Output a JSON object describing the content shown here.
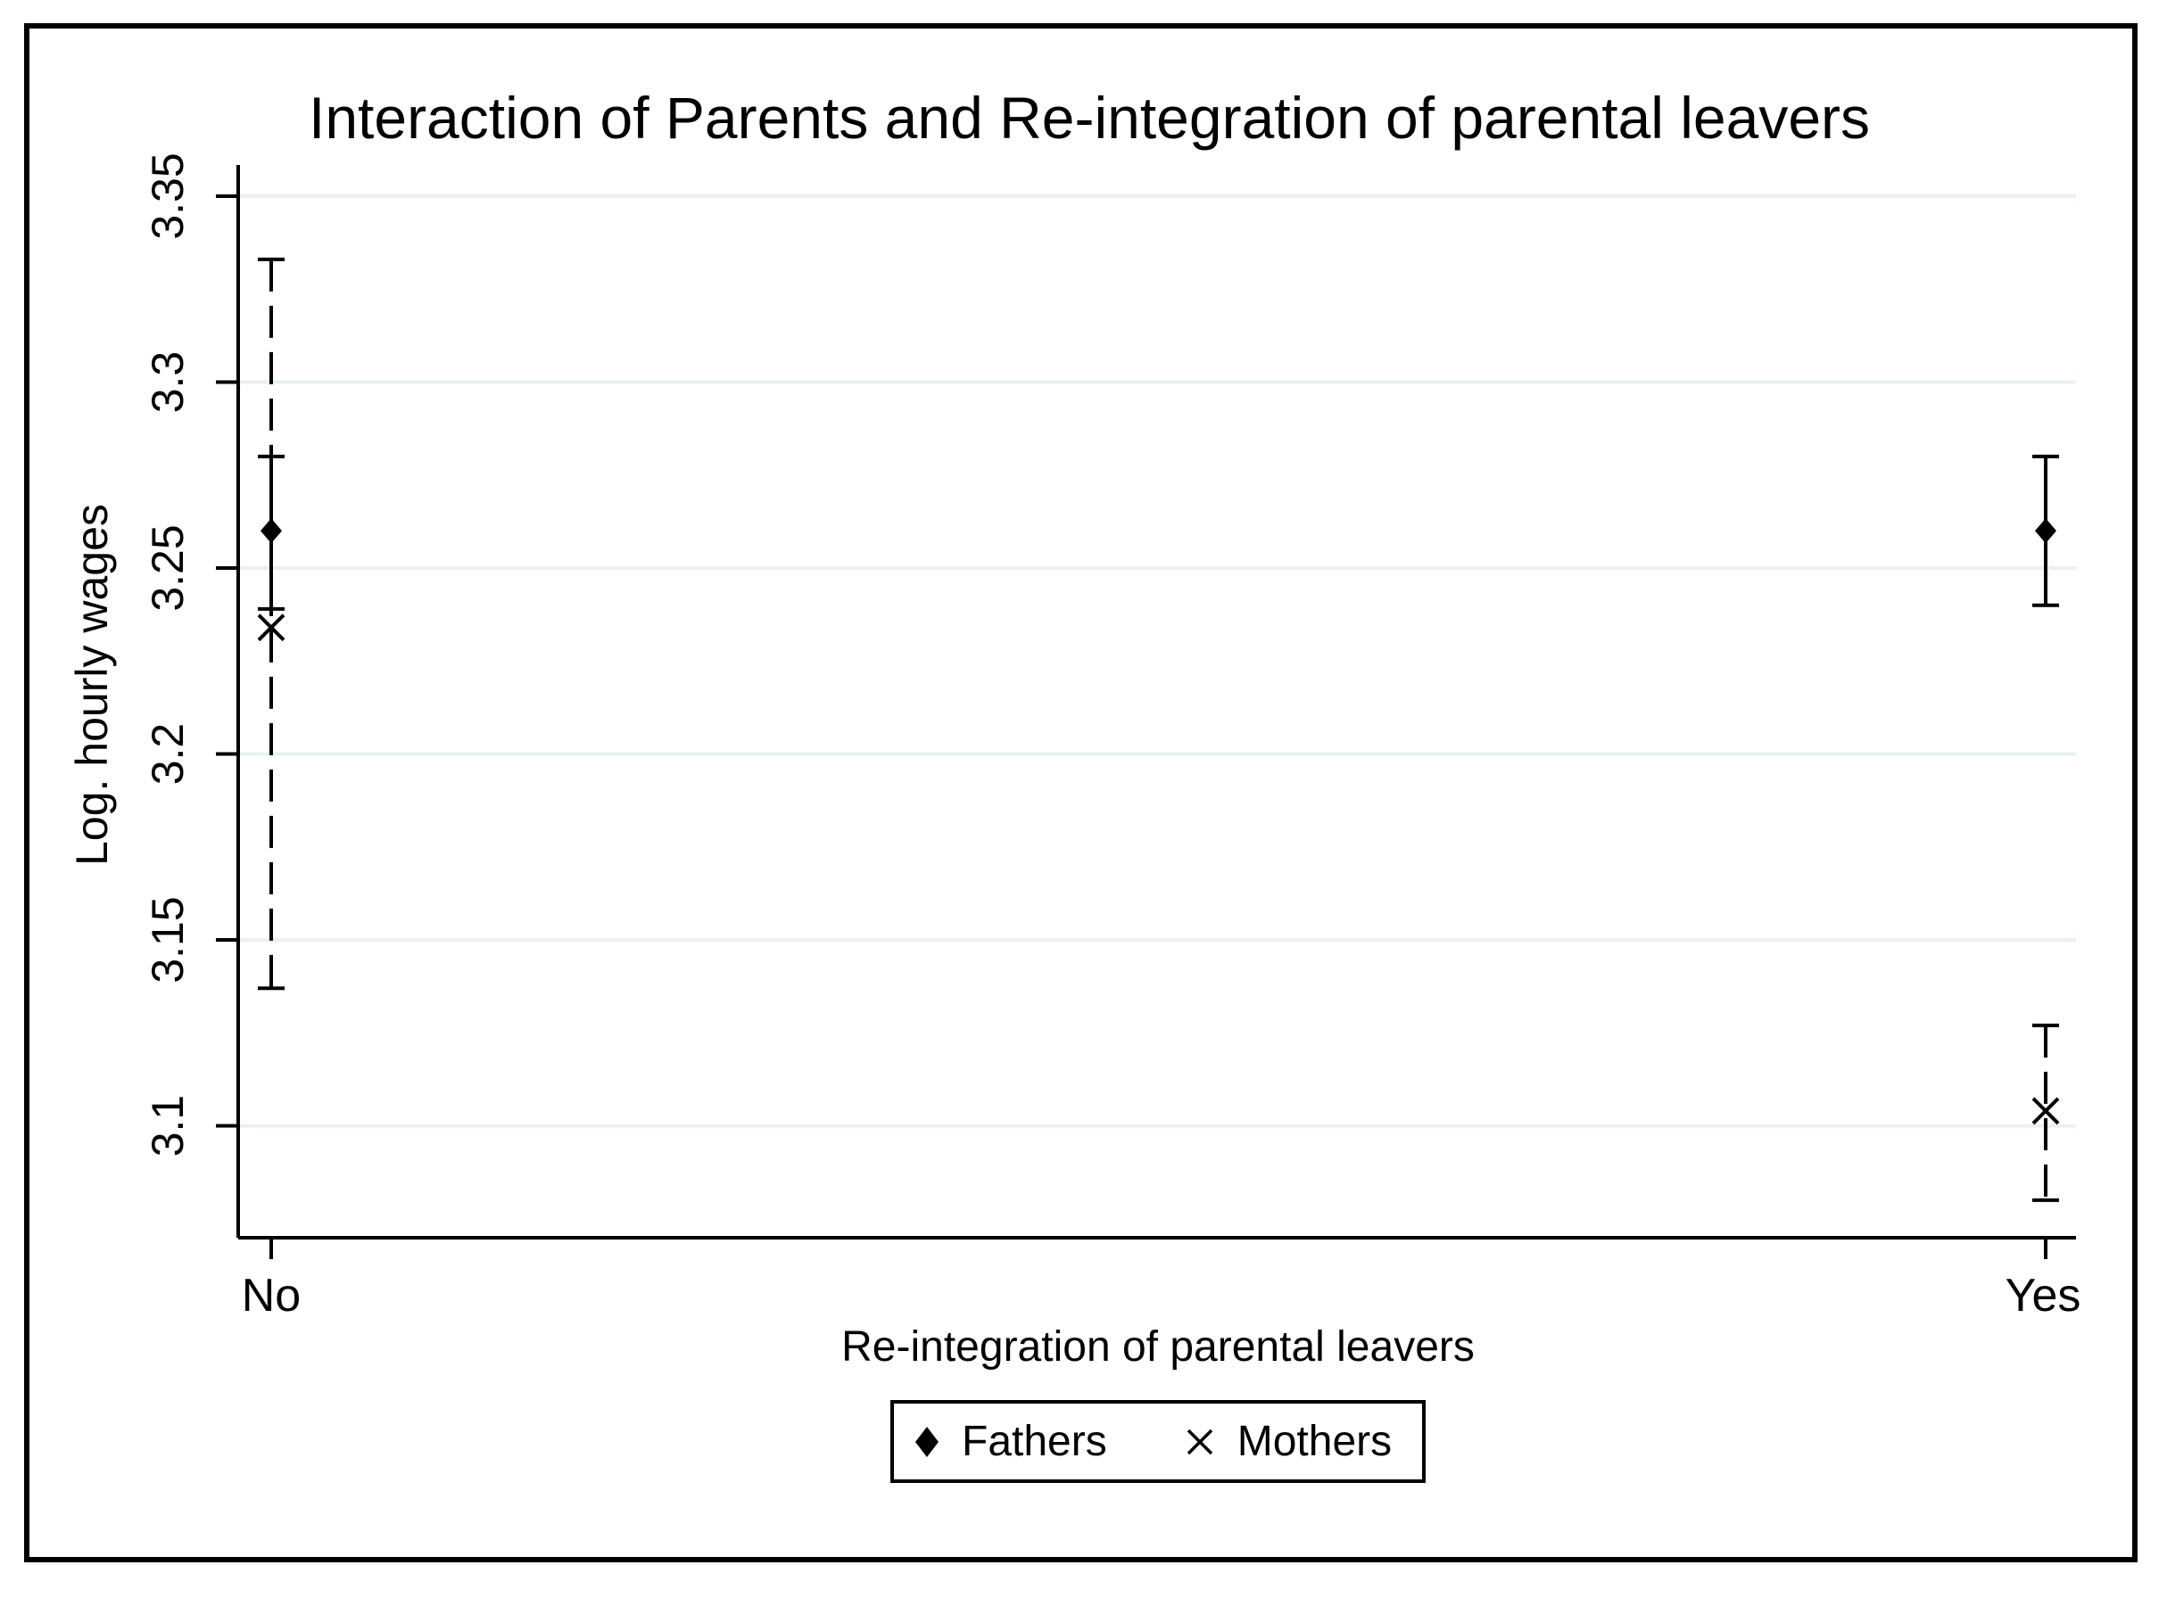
{
  "figure": {
    "title": "Interaction of Parents and Re-integration of parental leavers"
  },
  "axes": {
    "y_title": "Log. hourly wages",
    "x_title": "Re-integration of parental leavers"
  },
  "legend": {
    "items": [
      {
        "label": "Fathers",
        "marker": "diamond"
      },
      {
        "label": "Mothers",
        "marker": "x"
      }
    ]
  },
  "colors": {
    "marker": "#000000",
    "grid": "#e9f1f1",
    "axis": "#000000",
    "text": "#000000",
    "background": "#ffffff",
    "border": "#000000"
  },
  "chart_data": {
    "type": "scatter",
    "title": "Interaction of Parents and Re-integration of parental leavers",
    "xlabel": "Re-integration of parental leavers",
    "ylabel": "Log. hourly wages",
    "categories": [
      "No",
      "Yes"
    ],
    "ylim": [
      3.07,
      3.36
    ],
    "yticks": [
      3.1,
      3.15,
      3.2,
      3.25,
      3.3,
      3.35
    ],
    "ytick_labels": [
      "3.1",
      "3.15",
      "3.2",
      "3.25",
      "3.3",
      "3.35"
    ],
    "grid": true,
    "legend_position": "bottom",
    "error_bars": "95% CI with caps",
    "series": [
      {
        "name": "Mothers",
        "marker": "x",
        "line_style": "dashed",
        "points": [
          {
            "category": "No",
            "value": 3.234,
            "ci_low": 3.137,
            "ci_high": 3.333
          },
          {
            "category": "Yes",
            "value": 3.104,
            "ci_low": 3.08,
            "ci_high": 3.127
          }
        ]
      },
      {
        "name": "Fathers",
        "marker": "diamond",
        "line_style": "solid",
        "points": [
          {
            "category": "No",
            "value": 3.26,
            "ci_low": 3.239,
            "ci_high": 3.28
          },
          {
            "category": "Yes",
            "value": 3.26,
            "ci_low": 3.24,
            "ci_high": 3.28
          }
        ]
      }
    ]
  }
}
